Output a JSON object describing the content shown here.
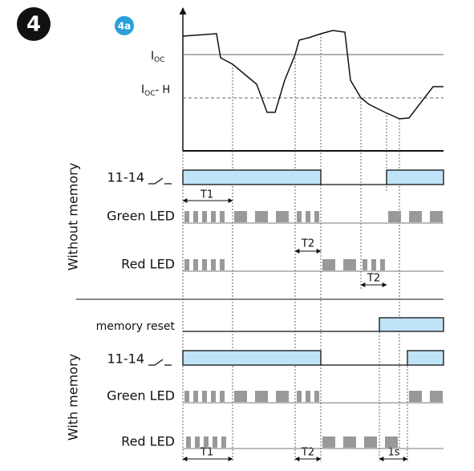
{
  "badges": {
    "figure": "4",
    "panel": "4a"
  },
  "current_levels": {
    "i_oc": {
      "symbol": "I",
      "subscript": "OC"
    },
    "i_oc_h": {
      "symbol": "I",
      "subscript": "OC",
      "suffix": "- H"
    }
  },
  "sections": [
    {
      "title": "Without memory",
      "rows": [
        "11-14",
        "Green LED",
        "Red LED"
      ],
      "intervals": [
        "T1",
        "T2",
        "T2"
      ]
    },
    {
      "title": "With memory",
      "rows": [
        "memory reset",
        "11-14",
        "Green LED",
        "Red LED"
      ],
      "intervals": [
        "T1",
        "T2",
        "1s"
      ]
    }
  ]
}
